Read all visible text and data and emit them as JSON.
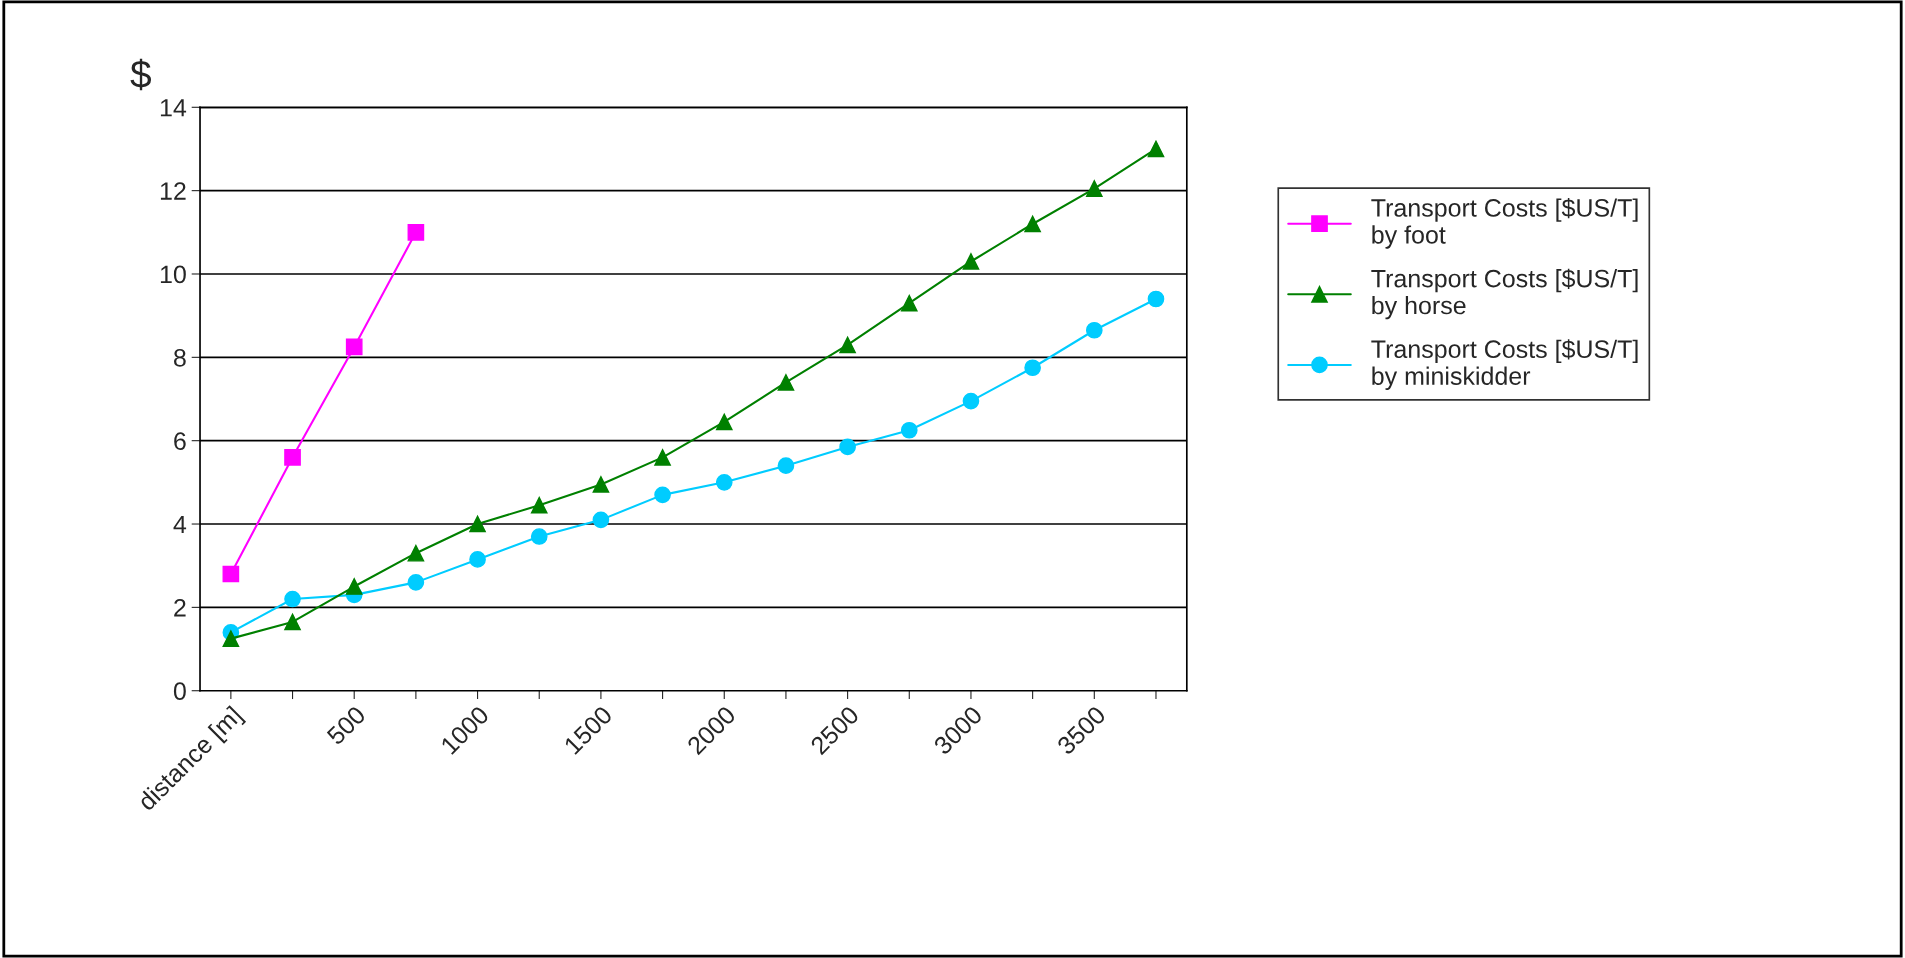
{
  "chart_data": {
    "type": "line",
    "ylabel": "$",
    "categories": [
      "distance [m]",
      null,
      "500",
      null,
      "1000",
      null,
      "1500",
      null,
      "2000",
      null,
      "2500",
      null,
      "3000",
      null,
      "3500",
      null
    ],
    "ylim": [
      0,
      14
    ],
    "yticks": [
      0,
      2,
      4,
      6,
      8,
      10,
      12,
      14
    ],
    "grid": "y",
    "legend": "right",
    "line_style": "solid",
    "series": [
      {
        "name": "Transport Costs [$US/T]\nby foot",
        "color": "#ff00ff",
        "marker": "square",
        "values": [
          2.8,
          5.6,
          8.25,
          11.0,
          null,
          null,
          null,
          null,
          null,
          null,
          null,
          null,
          null,
          null,
          null,
          null
        ]
      },
      {
        "name": "Transport Costs [$US/T]\nby horse",
        "color": "#008000",
        "marker": "triangle",
        "values": [
          1.25,
          1.65,
          2.5,
          3.3,
          4.0,
          4.45,
          4.95,
          5.6,
          6.45,
          7.4,
          8.3,
          9.3,
          10.3,
          11.2,
          12.05,
          13.0
        ]
      },
      {
        "name": "Transport Costs [$US/T]\nby miniskidder",
        "color": "#00ccff",
        "marker": "circle",
        "values": [
          1.4,
          2.2,
          2.3,
          2.6,
          3.15,
          3.7,
          4.1,
          4.7,
          5.0,
          5.4,
          5.85,
          6.25,
          6.95,
          7.75,
          8.65,
          9.4
        ]
      }
    ]
  }
}
